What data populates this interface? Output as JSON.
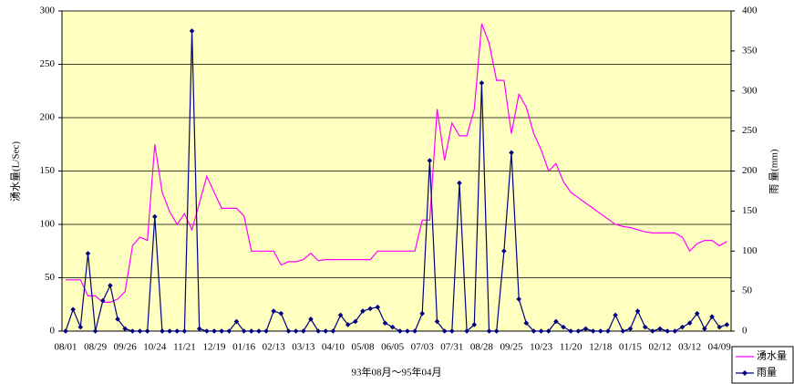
{
  "chart_data": {
    "type": "line",
    "xlabel": "93年08月～95年04月",
    "ylabel": "湧水量(L/Sec)",
    "y2label": "雨 量(mm)",
    "categories": [
      "08/01",
      null,
      null,
      null,
      "08/29",
      null,
      null,
      null,
      "09/26",
      null,
      null,
      null,
      "10/24",
      null,
      null,
      null,
      "11/21",
      null,
      null,
      null,
      "12/19",
      null,
      null,
      null,
      "01/16",
      null,
      null,
      null,
      "02/13",
      null,
      null,
      null,
      "03/13",
      null,
      null,
      null,
      "04/10",
      null,
      null,
      null,
      "05/08",
      null,
      null,
      null,
      "06/05",
      null,
      null,
      null,
      "07/03",
      null,
      null,
      null,
      "07/31",
      null,
      null,
      null,
      "08/28",
      null,
      null,
      null,
      "09/25",
      null,
      null,
      null,
      "10/23",
      null,
      null,
      null,
      "11/20",
      null,
      null,
      null,
      "12/18",
      null,
      null,
      null,
      "01/15",
      null,
      null,
      null,
      "02/12",
      null,
      null,
      null,
      "03/12",
      null,
      null,
      null,
      "04/09",
      null
    ],
    "series": [
      {
        "name": "湧水量",
        "color": "#ff00ff",
        "axis": "y",
        "values": [
          48,
          48,
          48,
          33,
          33,
          27,
          27,
          30,
          37,
          80,
          88,
          85,
          175,
          130,
          112,
          100,
          110,
          95,
          120,
          145,
          130,
          115,
          115,
          115,
          108,
          75,
          75,
          75,
          75,
          62,
          65,
          65,
          67,
          73,
          66,
          67,
          67,
          67,
          67,
          67,
          67,
          67,
          75,
          75,
          75,
          75,
          75,
          75,
          104,
          104,
          208,
          160,
          195,
          183,
          183,
          208,
          288,
          270,
          235,
          235,
          185,
          222,
          210,
          185,
          170,
          150,
          157,
          140,
          130,
          125,
          120,
          115,
          110,
          105,
          100,
          98,
          97,
          95,
          93,
          92,
          92,
          92,
          92,
          88,
          75,
          82,
          85,
          85,
          80,
          84
        ]
      },
      {
        "name": "雨量",
        "color": "#000080",
        "axis": "y2",
        "marker": "diamond",
        "values": [
          0,
          27,
          5,
          97,
          0,
          38,
          57,
          15,
          3,
          0,
          0,
          0,
          143,
          0,
          0,
          0,
          0,
          375,
          3,
          0,
          0,
          0,
          0,
          12,
          0,
          0,
          0,
          0,
          25,
          22,
          0,
          0,
          0,
          15,
          0,
          0,
          0,
          20,
          8,
          12,
          25,
          28,
          30,
          10,
          5,
          0,
          0,
          0,
          22,
          213,
          12,
          0,
          0,
          185,
          0,
          8,
          310,
          0,
          0,
          100,
          223,
          40,
          10,
          0,
          0,
          0,
          12,
          5,
          0,
          0,
          3,
          0,
          0,
          0,
          20,
          0,
          3,
          25,
          5,
          0,
          3,
          0,
          0,
          5,
          10,
          22,
          3,
          18,
          5,
          8
        ]
      }
    ],
    "ylim": [
      0,
      300
    ],
    "yticks": [
      0,
      50,
      100,
      150,
      200,
      250,
      300
    ],
    "y2lim": [
      0,
      400
    ],
    "y2ticks": [
      0,
      50,
      100,
      150,
      200,
      250,
      300,
      350,
      400
    ],
    "grid": true,
    "legend": "lower right",
    "plot_background": "#ffffc0"
  }
}
